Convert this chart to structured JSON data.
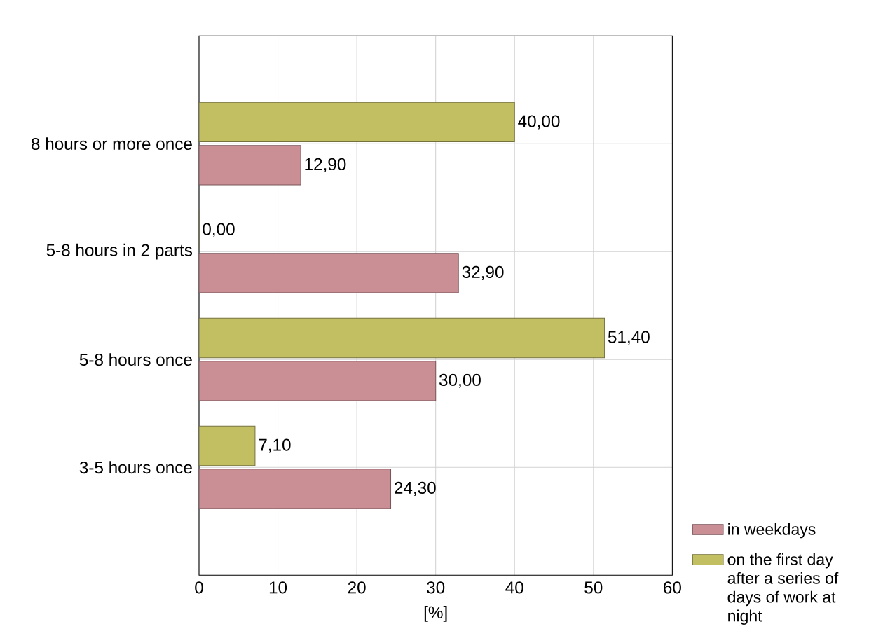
{
  "chart_data": {
    "type": "bar",
    "orientation": "horizontal",
    "categories": [
      "8 hours or more once",
      "5-8 hours in 2 parts",
      "5-8 hours once",
      "3-5 hours once"
    ],
    "series": [
      {
        "name": "in weekdays",
        "color": "#c98f94",
        "values": [
          12.9,
          32.9,
          30.0,
          24.3
        ],
        "value_labels": [
          "12,90",
          "32,90",
          "30,00",
          "24,30"
        ]
      },
      {
        "name": "on the first day after a series of days of work at night",
        "color": "#c2be62",
        "values": [
          40.0,
          0.0,
          51.4,
          7.1
        ],
        "value_labels": [
          "40,00",
          "0,00",
          "51,40",
          "7,10"
        ]
      }
    ],
    "xlabel": "[%]",
    "xlim": [
      0,
      60
    ],
    "xticks": [
      0,
      10,
      20,
      30,
      40,
      50,
      60
    ],
    "grid": true,
    "legend": "bottom right"
  }
}
